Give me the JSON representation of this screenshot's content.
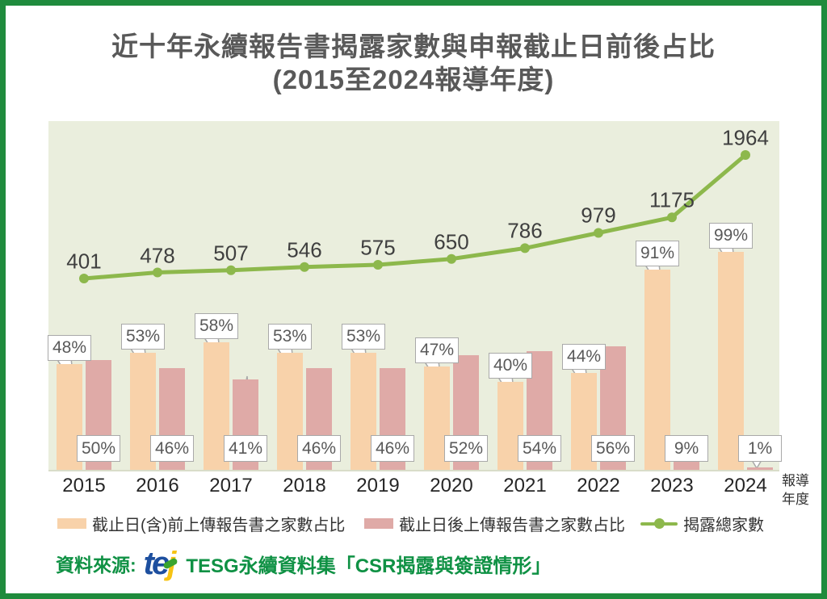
{
  "title": {
    "line1": "近十年永續報告書揭露家數與申報截止日前後占比",
    "line2": "(2015至2024報導年度)"
  },
  "chart_data": {
    "type": "bar+line",
    "categories": [
      "2015",
      "2016",
      "2017",
      "2018",
      "2019",
      "2020",
      "2021",
      "2022",
      "2023",
      "2024"
    ],
    "series": [
      {
        "name": "截止日(含)前上傳報告書之家數占比",
        "type": "bar",
        "unit": "%",
        "color": "#f8d2aa",
        "values": [
          48,
          53,
          58,
          53,
          53,
          47,
          40,
          44,
          91,
          99
        ]
      },
      {
        "name": "截止日後上傳報告書之家數占比",
        "type": "bar",
        "unit": "%",
        "color": "#dfaaa7",
        "values": [
          50,
          46,
          41,
          46,
          46,
          52,
          54,
          56,
          9,
          1
        ]
      },
      {
        "name": "揭露總家數",
        "type": "line",
        "color": "#8db84c",
        "values": [
          401,
          478,
          507,
          546,
          575,
          650,
          786,
          979,
          1175,
          1964
        ]
      }
    ],
    "x_axis_title": "報導年度",
    "bar_axis_range_pct": [
      0,
      100
    ],
    "legend_position": "bottom",
    "grid": false,
    "plot_background": "#eaeedd"
  },
  "source": {
    "prefix": "資料來源:",
    "logo_text": "tej",
    "text": "TESG永續資料集「CSR揭露與簽證情形」"
  },
  "colors": {
    "frame_border": "#1f8b3d",
    "title_text": "#595959",
    "pre_bar": "#f8d2aa",
    "post_bar": "#dfaaa7",
    "line": "#8db84c",
    "source_text": "#0f9144",
    "callout_border": "#a9a9a9"
  }
}
